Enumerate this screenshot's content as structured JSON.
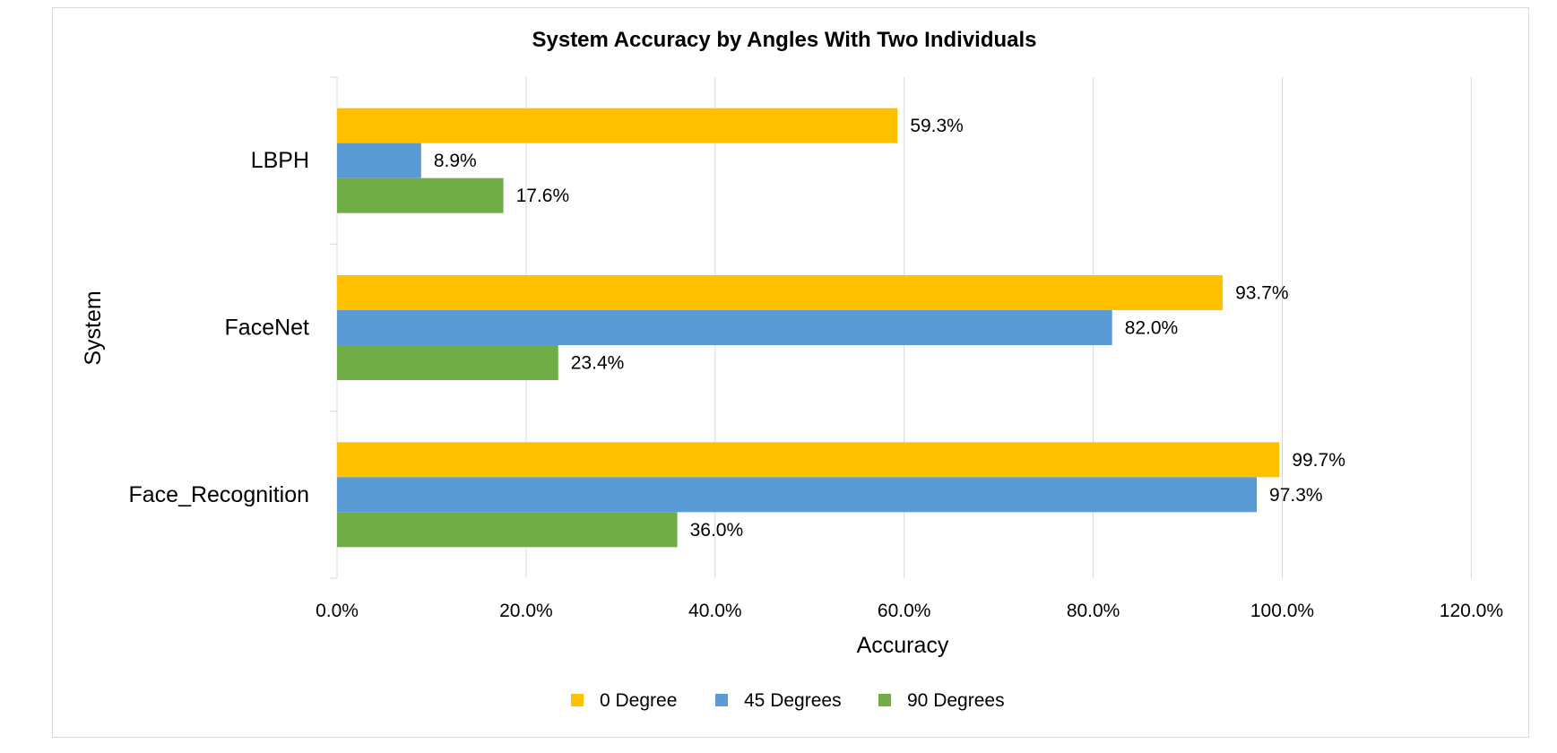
{
  "chart_data": {
    "type": "bar",
    "orientation": "horizontal",
    "title": "System Accuracy by Angles With Two Individuals",
    "xlabel": "Accuracy",
    "ylabel": "System",
    "categories": [
      "LBPH",
      "FaceNet",
      "Face_Recognition"
    ],
    "series": [
      {
        "name": "0 Degree",
        "color": "#FFC000",
        "values": [
          59.3,
          93.7,
          99.7
        ],
        "labels": [
          "59.3%",
          "93.7%",
          "99.7%"
        ]
      },
      {
        "name": "45 Degrees",
        "color": "#5B9BD5",
        "values": [
          8.9,
          82.0,
          97.3
        ],
        "labels": [
          "8.9%",
          "82.0%",
          "97.3%"
        ]
      },
      {
        "name": "90 Degrees",
        "color": "#70AD47",
        "values": [
          17.6,
          23.4,
          36.0
        ],
        "labels": [
          "17.6%",
          "23.4%",
          "36.0%"
        ]
      }
    ],
    "xlim": [
      0,
      120
    ],
    "xticks": [
      0,
      20,
      40,
      60,
      80,
      100,
      120
    ],
    "xtick_labels": [
      "0.0%",
      "20.0%",
      "40.0%",
      "60.0%",
      "80.0%",
      "100.0%",
      "120.0%"
    ],
    "grid": "vertical",
    "legend": "bottom"
  }
}
